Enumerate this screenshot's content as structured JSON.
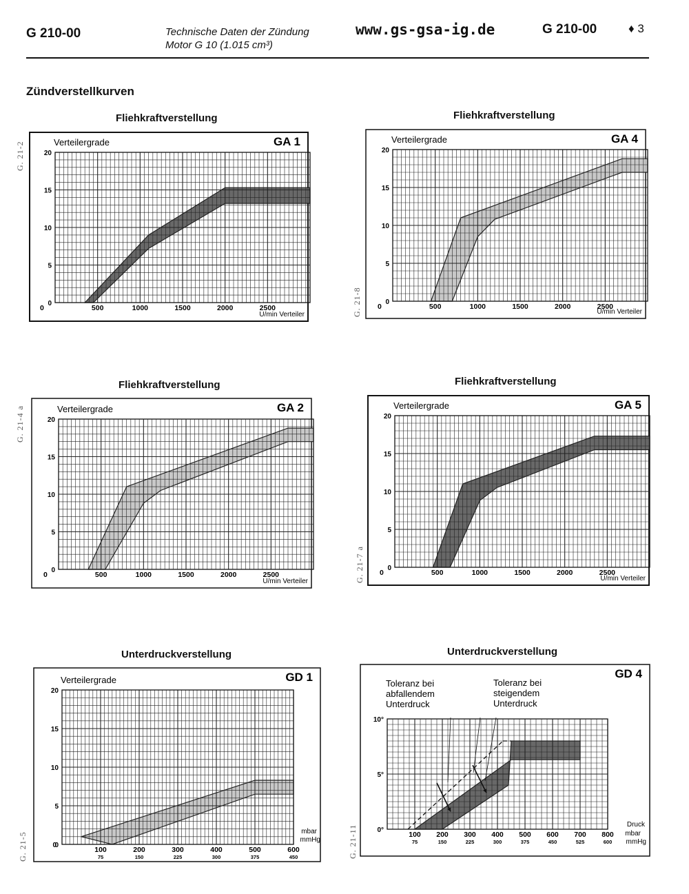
{
  "header": {
    "code_left": "G 210-00",
    "subtitle_line1": "Technische Daten der Zündung",
    "subtitle_line2": "Motor G 10 (1.015 cm³)",
    "url": "www.gs-gsa-ig.de",
    "code_right": "G 210-00",
    "page": "♦ 3"
  },
  "section_title": "Zündverstellkurven",
  "colors": {
    "band_light": "#c4c4c4",
    "band_dark": "#5c5c5c",
    "grid": "#222222"
  },
  "chart_data": [
    {
      "id": "ga1",
      "type": "area",
      "title": "Fliehkraftverstellung",
      "label": "GA 1",
      "side_code": "G. 21-2",
      "ylabel": "Verteilergrade",
      "xlabel": "U/min Verteiler",
      "xlim": [
        0,
        3000
      ],
      "ylim": [
        0,
        20
      ],
      "xticks": [
        "500",
        "1000",
        "1500",
        "2000",
        "2500"
      ],
      "xtick_values": [
        500,
        1000,
        1500,
        2000,
        2500
      ],
      "yticks": [
        "0",
        "5",
        "10",
        "15",
        "20"
      ],
      "ytick_values": [
        0,
        5,
        10,
        15,
        20
      ],
      "shade": "dark",
      "band_upper": [
        [
          350,
          0
        ],
        [
          1100,
          9
        ],
        [
          2000,
          15.3
        ],
        [
          3000,
          15.3
        ]
      ],
      "band_lower": [
        [
          450,
          0
        ],
        [
          1100,
          7.2
        ],
        [
          2000,
          13.2
        ],
        [
          3000,
          13.2
        ]
      ]
    },
    {
      "id": "ga4",
      "type": "area",
      "title": "Fliehkraftverstellung",
      "label": "GA 4",
      "side_code": "G. 21-8",
      "ylabel": "Verteilergrade",
      "xlabel": "U/min Verteiler",
      "xlim": [
        0,
        3000
      ],
      "ylim": [
        0,
        20
      ],
      "xticks": [
        "500",
        "1000",
        "1500",
        "2000",
        "2500"
      ],
      "xtick_values": [
        500,
        1000,
        1500,
        2000,
        2500
      ],
      "yticks": [
        "0",
        "5",
        "10",
        "15",
        "20"
      ],
      "ytick_values": [
        0,
        5,
        10,
        15,
        20
      ],
      "shade": "light",
      "band_upper": [
        [
          450,
          0
        ],
        [
          800,
          11
        ],
        [
          2700,
          18.8
        ],
        [
          3000,
          18.8
        ]
      ],
      "band_lower": [
        [
          700,
          0
        ],
        [
          1000,
          8.5
        ],
        [
          1200,
          10.8
        ],
        [
          2700,
          17
        ],
        [
          3000,
          17
        ]
      ]
    },
    {
      "id": "ga2",
      "type": "area",
      "title": "Fliehkraftverstellung",
      "label": "GA 2",
      "side_code": "G. 21-4 a",
      "ylabel": "Verteilergrade",
      "xlabel": "U/min Verteiler",
      "xlim": [
        0,
        3000
      ],
      "ylim": [
        0,
        20
      ],
      "xticks": [
        "500",
        "1000",
        "1500",
        "2000",
        "2500"
      ],
      "xtick_values": [
        500,
        1000,
        1500,
        2000,
        2500
      ],
      "yticks": [
        "0",
        "5",
        "10",
        "15",
        "20"
      ],
      "ytick_values": [
        0,
        5,
        10,
        15,
        20
      ],
      "shade": "light",
      "band_upper": [
        [
          350,
          0
        ],
        [
          800,
          11
        ],
        [
          2700,
          18.8
        ],
        [
          3000,
          18.8
        ]
      ],
      "band_lower": [
        [
          550,
          0
        ],
        [
          1000,
          8.8
        ],
        [
          1200,
          10.5
        ],
        [
          2700,
          17
        ],
        [
          3000,
          17
        ]
      ]
    },
    {
      "id": "ga5",
      "type": "area",
      "title": "Fliehkraftverstellung",
      "label": "GA 5",
      "side_code": "G. 21-7 a",
      "ylabel": "Verteilergrade",
      "xlabel": "U/min Verteiler",
      "xlim": [
        0,
        3000
      ],
      "ylim": [
        0,
        20
      ],
      "xticks": [
        "500",
        "1000",
        "1500",
        "2000",
        "2500"
      ],
      "xtick_values": [
        500,
        1000,
        1500,
        2000,
        2500
      ],
      "yticks": [
        "0",
        "5",
        "10",
        "15",
        "20"
      ],
      "ytick_values": [
        0,
        5,
        10,
        15,
        20
      ],
      "shade": "dark",
      "band_upper": [
        [
          450,
          0
        ],
        [
          800,
          11
        ],
        [
          2350,
          17.3
        ],
        [
          3000,
          17.3
        ]
      ],
      "band_lower": [
        [
          650,
          0
        ],
        [
          1000,
          8.8
        ],
        [
          1200,
          10.5
        ],
        [
          2350,
          15.5
        ],
        [
          3000,
          15.5
        ]
      ]
    },
    {
      "id": "gd1",
      "type": "area",
      "title": "Unterdruckverstellung",
      "label": "GD 1",
      "side_code": "G. 21-5",
      "ylabel": "Verteilergrade",
      "xlabel": "mbar",
      "xlabel2": "mmHg",
      "xlim": [
        0,
        600
      ],
      "ylim": [
        0,
        20
      ],
      "xticks": [
        "100",
        "200",
        "300",
        "400",
        "500",
        "600"
      ],
      "xtick_values": [
        100,
        200,
        300,
        400,
        500,
        600
      ],
      "xticks2": [
        "75",
        "150",
        "225",
        "300",
        "375",
        "450"
      ],
      "yticks": [
        "0",
        "5",
        "10",
        "15",
        "20"
      ],
      "ytick_values": [
        0,
        5,
        10,
        15,
        20
      ],
      "shade": "light",
      "band_upper": [
        [
          50,
          1
        ],
        [
          500,
          8.3
        ],
        [
          600,
          8.3
        ]
      ],
      "band_lower": [
        [
          130,
          0
        ],
        [
          500,
          6.5
        ],
        [
          600,
          6.5
        ]
      ]
    },
    {
      "id": "gd4",
      "type": "area",
      "title": "Unterdruckverstellung",
      "label": "GD 4",
      "side_code": "G. 21-11",
      "ylabel": "",
      "xlabel": "Druck",
      "xlabel_mbar": "mbar",
      "xlabel_mmhg": "mmHg",
      "xlim": [
        0,
        800
      ],
      "ylim": [
        0,
        10
      ],
      "xticks": [
        "100",
        "200",
        "300",
        "400",
        "500",
        "600",
        "700",
        "800"
      ],
      "xtick_values": [
        100,
        200,
        300,
        400,
        500,
        600,
        700,
        800
      ],
      "xticks2": [
        "75",
        "150",
        "225",
        "300",
        "375",
        "450",
        "525",
        "600"
      ],
      "yticks": [
        "0°",
        "5°",
        "10°"
      ],
      "ytick_values": [
        0,
        5,
        10
      ],
      "shade": "dark",
      "band_upper": [
        [
          200,
          0
        ],
        [
          440,
          4
        ],
        [
          450,
          8
        ],
        [
          700,
          8
        ]
      ],
      "band_lower": [
        [
          100,
          0
        ],
        [
          450,
          6.3
        ],
        [
          700,
          6.3
        ]
      ],
      "dashed_line": [
        [
          75,
          0
        ],
        [
          420,
          8
        ]
      ],
      "annotation_falling": "Toleranz bei abfallendem Unterdruck",
      "annotation_rising": "Toleranz bei steigendem Unterdruck"
    }
  ]
}
